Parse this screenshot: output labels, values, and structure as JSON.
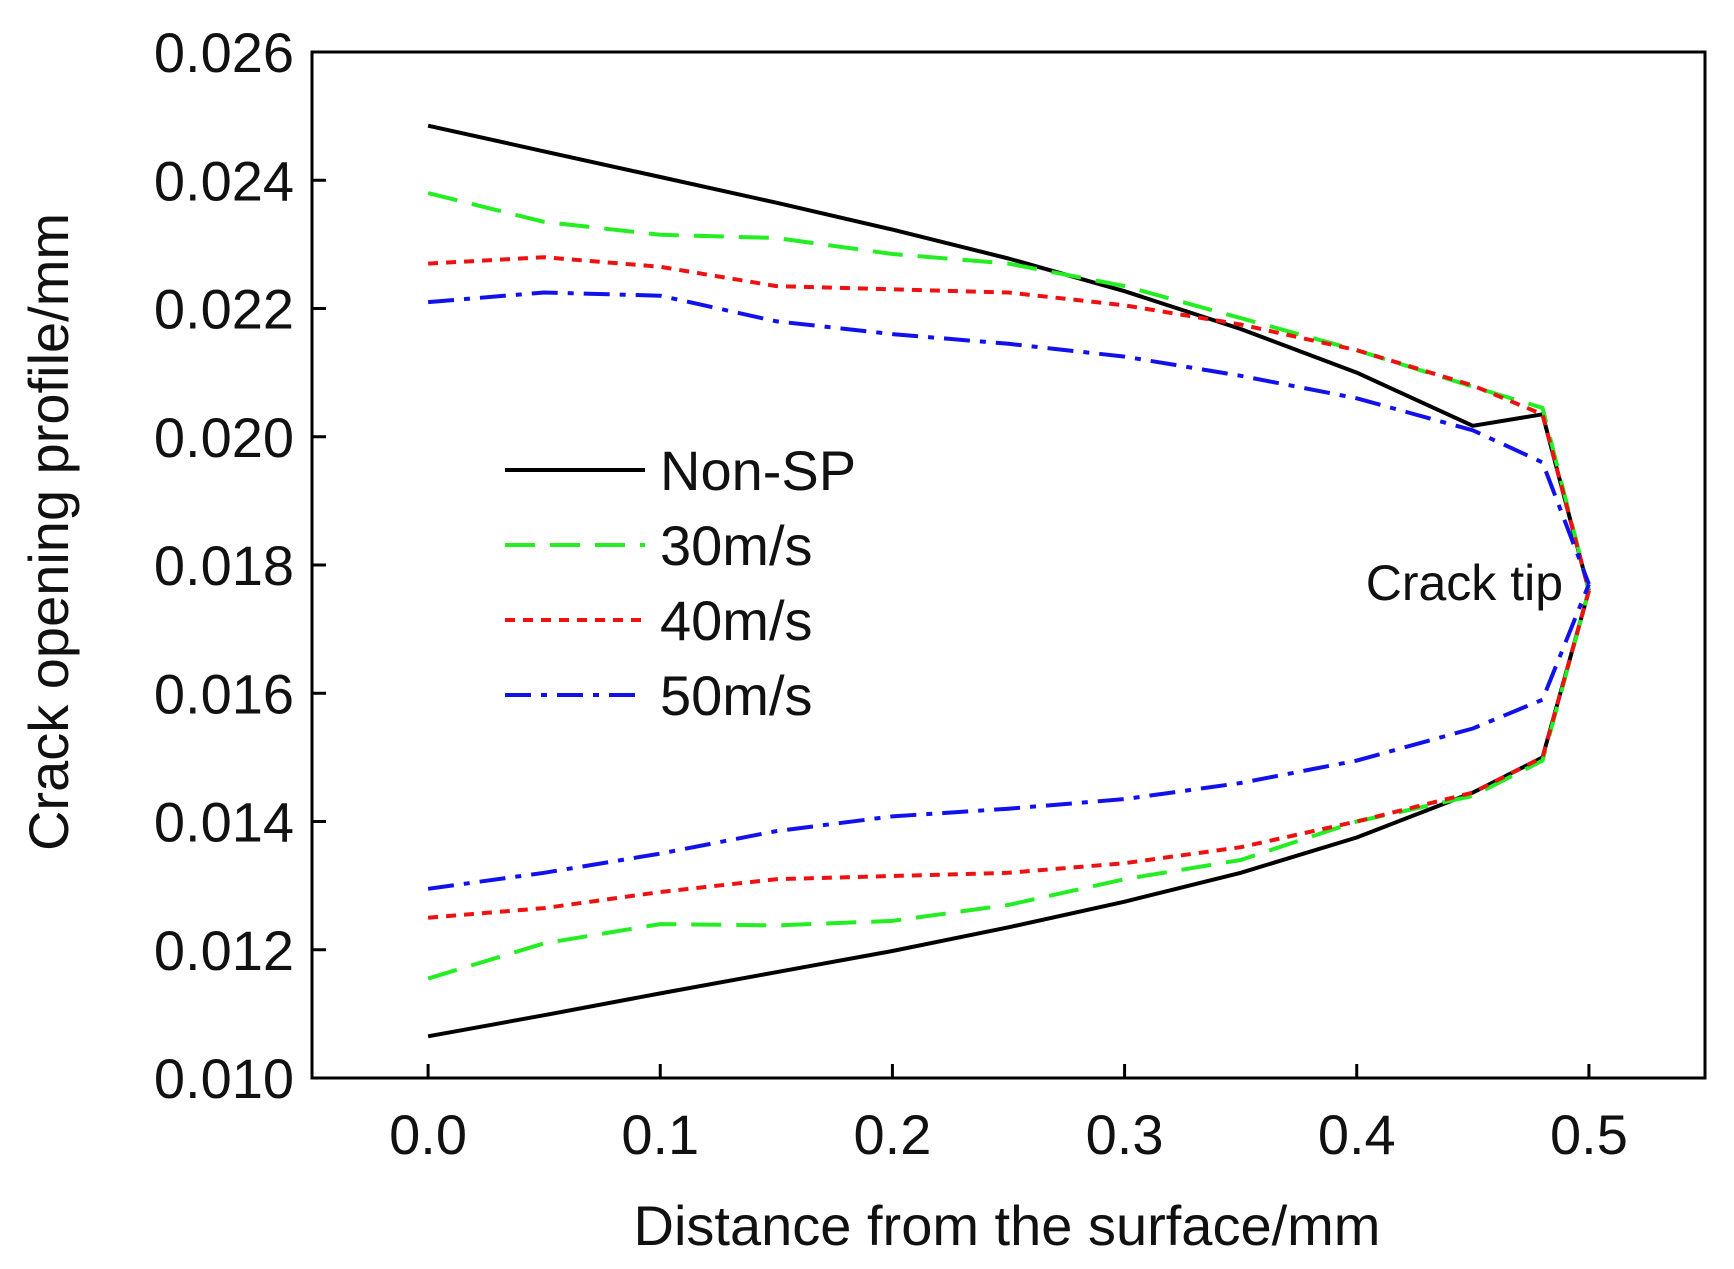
{
  "chart_data": {
    "type": "line",
    "title": "",
    "xlabel": "Distance from the surface/mm",
    "ylabel": "Crack opening profile/mm",
    "xlim": [
      -0.05,
      0.55
    ],
    "ylim": [
      0.01,
      0.026
    ],
    "xticks": [
      0.0,
      0.1,
      0.2,
      0.3,
      0.4,
      0.5
    ],
    "xtick_labels": [
      "0.0",
      "0.1",
      "0.2",
      "0.3",
      "0.4",
      "0.5"
    ],
    "yticks": [
      0.01,
      0.012,
      0.014,
      0.016,
      0.018,
      0.02,
      0.022,
      0.024,
      0.026
    ],
    "ytick_labels": [
      "0.010",
      "0.012",
      "0.014",
      "0.016",
      "0.018",
      "0.020",
      "0.022",
      "0.024",
      "0.026"
    ],
    "grid": false,
    "legend_position": "left-middle",
    "annotation": {
      "text": "Crack tip",
      "x": 0.5,
      "y": 0.0176
    },
    "series": [
      {
        "name": "Non-SP",
        "color": "#000000",
        "dash": "solid",
        "upper": {
          "x": [
            0.0,
            0.05,
            0.1,
            0.15,
            0.2,
            0.25,
            0.3,
            0.35,
            0.4,
            0.45,
            0.48,
            0.5
          ],
          "y": [
            0.02485,
            0.02445,
            0.02405,
            0.02365,
            0.02323,
            0.02278,
            0.02227,
            0.02168,
            0.021,
            0.02017,
            0.02035,
            0.0176
          ]
        },
        "lower": {
          "x": [
            0.0,
            0.05,
            0.1,
            0.15,
            0.2,
            0.25,
            0.3,
            0.35,
            0.4,
            0.45,
            0.48,
            0.5
          ],
          "y": [
            0.01065,
            0.01098,
            0.01132,
            0.01165,
            0.01198,
            0.01235,
            0.01275,
            0.0132,
            0.01375,
            0.01445,
            0.015,
            0.0176
          ]
        }
      },
      {
        "name": "30m/s",
        "color": "#22ee22",
        "dash": "dashed",
        "upper": {
          "x": [
            0.0,
            0.05,
            0.1,
            0.15,
            0.2,
            0.25,
            0.3,
            0.35,
            0.4,
            0.45,
            0.48,
            0.5
          ],
          "y": [
            0.0238,
            0.02335,
            0.02315,
            0.0231,
            0.02285,
            0.0227,
            0.02235,
            0.02185,
            0.02135,
            0.02078,
            0.02045,
            0.0176
          ]
        },
        "lower": {
          "x": [
            0.0,
            0.05,
            0.1,
            0.15,
            0.2,
            0.25,
            0.3,
            0.35,
            0.4,
            0.45,
            0.48,
            0.5
          ],
          "y": [
            0.01155,
            0.0121,
            0.0124,
            0.01238,
            0.01245,
            0.0127,
            0.0131,
            0.0134,
            0.014,
            0.0144,
            0.01495,
            0.0176
          ]
        }
      },
      {
        "name": "40m/s",
        "color": "#ee1111",
        "dash": "dotted",
        "upper": {
          "x": [
            0.0,
            0.05,
            0.1,
            0.15,
            0.2,
            0.25,
            0.3,
            0.35,
            0.4,
            0.45,
            0.48,
            0.5
          ],
          "y": [
            0.0227,
            0.0228,
            0.02265,
            0.02235,
            0.0223,
            0.02225,
            0.02205,
            0.02175,
            0.02135,
            0.0208,
            0.02035,
            0.0176
          ]
        },
        "lower": {
          "x": [
            0.0,
            0.05,
            0.1,
            0.15,
            0.2,
            0.25,
            0.3,
            0.35,
            0.4,
            0.45,
            0.48,
            0.5
          ],
          "y": [
            0.0125,
            0.01265,
            0.0129,
            0.0131,
            0.01315,
            0.0132,
            0.01335,
            0.0136,
            0.014,
            0.01445,
            0.015,
            0.0176
          ]
        }
      },
      {
        "name": "50m/s",
        "color": "#1111ee",
        "dash": "dashdot",
        "upper": {
          "x": [
            0.0,
            0.05,
            0.1,
            0.15,
            0.2,
            0.25,
            0.3,
            0.35,
            0.4,
            0.45,
            0.48,
            0.5
          ],
          "y": [
            0.0221,
            0.02225,
            0.0222,
            0.0218,
            0.0216,
            0.02145,
            0.02125,
            0.02095,
            0.0206,
            0.0201,
            0.0196,
            0.0177
          ]
        },
        "lower": {
          "x": [
            0.0,
            0.05,
            0.1,
            0.15,
            0.2,
            0.25,
            0.3,
            0.35,
            0.4,
            0.45,
            0.48,
            0.5
          ],
          "y": [
            0.01295,
            0.0132,
            0.0135,
            0.01385,
            0.01408,
            0.0142,
            0.01435,
            0.0146,
            0.01495,
            0.01545,
            0.0159,
            0.0177
          ]
        }
      }
    ]
  }
}
